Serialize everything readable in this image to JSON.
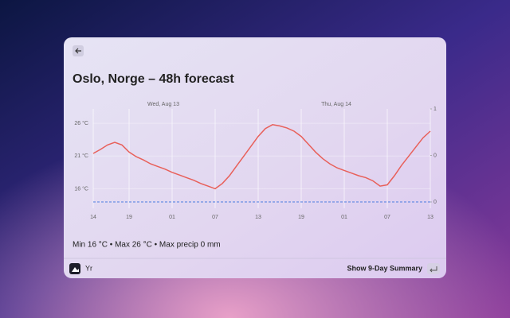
{
  "window": {
    "title": "Oslo, Norge – 48h forecast",
    "summary": "Min 16 °C • Max 26 °C • Max precip 0 mm",
    "footer": {
      "app": "Yr",
      "action": "Show 9-Day Summary"
    }
  },
  "chart_data": {
    "type": "line",
    "annotations": [
      "Wed, Aug 13",
      "Thu, Aug 14"
    ],
    "categories": [
      "14",
      null,
      null,
      null,
      null,
      "19",
      null,
      null,
      null,
      null,
      null,
      "01",
      null,
      null,
      null,
      null,
      null,
      "07",
      null,
      null,
      null,
      null,
      null,
      "13",
      null,
      null,
      null,
      null,
      null,
      "19",
      null,
      null,
      null,
      null,
      null,
      "01",
      null,
      null,
      null,
      null,
      null,
      "07",
      null,
      null,
      null,
      null,
      null,
      "13"
    ],
    "series": [
      {
        "color": "#e8605a",
        "values": [
          21.4,
          22.0,
          22.7,
          23.1,
          22.7,
          21.6,
          20.9,
          20.4,
          19.8,
          19.4,
          19.0,
          18.5,
          18.1,
          17.7,
          17.3,
          16.8,
          16.4,
          16.0,
          16.8,
          18.0,
          19.5,
          21.0,
          22.5,
          24.0,
          25.2,
          25.8,
          25.6,
          25.3,
          24.8,
          24.0,
          22.8,
          21.6,
          20.6,
          19.8,
          19.2,
          18.8,
          18.4,
          18.0,
          17.7,
          17.2,
          16.4,
          16.6,
          18.0,
          19.6,
          21.0,
          22.4,
          23.8,
          24.8
        ]
      },
      {
        "color": "#4a7be0",
        "axis": "y2",
        "values": [
          0,
          0,
          0,
          0,
          0,
          0,
          0,
          0,
          0,
          0,
          0,
          0,
          0,
          0,
          0,
          0,
          0,
          0,
          0,
          0,
          0,
          0,
          0,
          0,
          0,
          0,
          0,
          0,
          0,
          0,
          0,
          0,
          0,
          0,
          0,
          0,
          0,
          0,
          0,
          0,
          0,
          0,
          0,
          0,
          0,
          0,
          0,
          0
        ]
      }
    ],
    "ylim": [
      13.5,
      28.2
    ],
    "yticks": [
      {
        "value": 16,
        "label": "16 °C"
      },
      {
        "value": 21,
        "label": "21 °C"
      },
      {
        "value": 26,
        "label": "26 °C"
      }
    ],
    "y2lim": [
      0,
      1
    ],
    "y2ticks": [
      0,
      {
        "value": 0.5,
        "label": "0"
      },
      1
    ],
    "grid": true
  }
}
